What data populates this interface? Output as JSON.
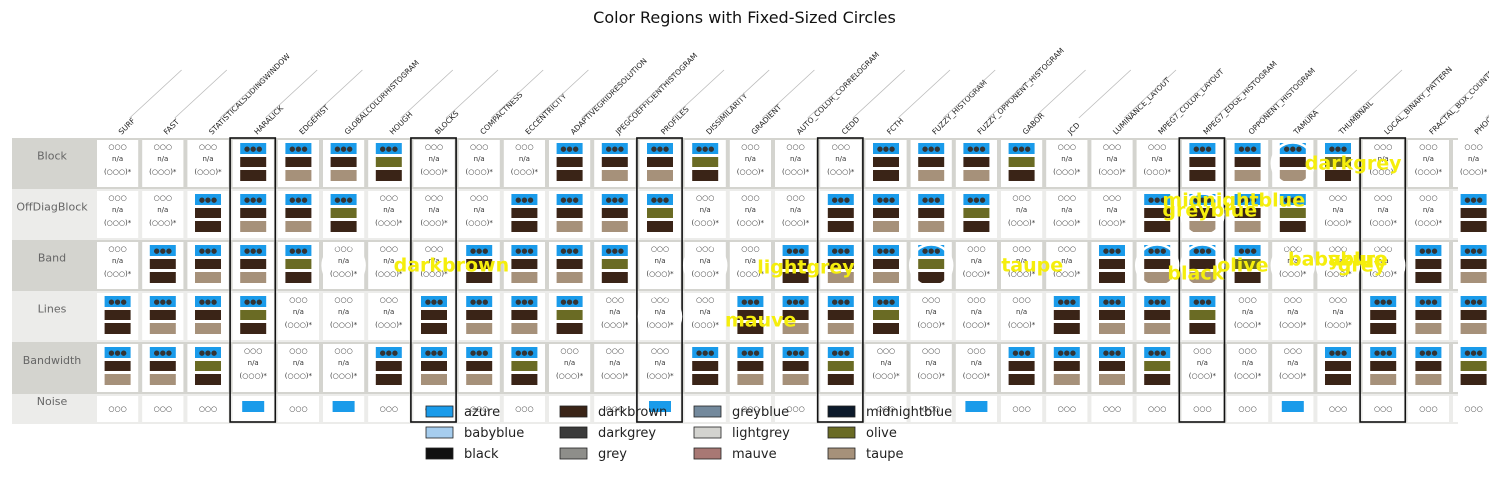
{
  "chart_data": {
    "type": "table",
    "title": "Color Regions with Fixed-Sized Circles",
    "columns": [
      "SURF",
      "FAST",
      "STATISTICALSLIDINGWINDOW",
      "HARALICK",
      "EDGEHIST",
      "GLOBALCOLORHISTOGRAM",
      "HOUGH",
      "BLOCKS",
      "COMPACTNESS",
      "ECCENTRICITY",
      "ADAPTIVEGRIDRESOLUTION",
      "JPEGCOEFFICIENTHISTOGRAM",
      "PROFILES",
      "DISSIMILARITY",
      "GRADIENT",
      "AUTO_COLOR_CORRELOGRAM",
      "CEDD",
      "FCTH",
      "FUZZY_HISTOGRAM",
      "FUZZY_OPPONENT_HISTOGRAM",
      "GABOR",
      "JCD",
      "LUMINANCE_LAYOUT",
      "MPEG7_COLOR_LAYOUT",
      "MPEG7_EDGE_HISTOGRAM",
      "OPPONENT_HISTOGRAM",
      "TAMURA",
      "THUMBNAIL",
      "LOCAL_BINARY_PATTERN",
      "FRACTAL_BOX_COUNTER",
      "PHOG"
    ],
    "rows": [
      "Block",
      "OffDiagBlock",
      "Band",
      "Lines",
      "Bandwidth",
      "Noise"
    ],
    "highlighted_columns": [
      "HARALICK",
      "BLOCKS",
      "PROFILES",
      "CEDD",
      "MPEG7_EDGE_HISTOGRAM",
      "LOCAL_BINARY_PATTERN"
    ],
    "cell_caption": "n/a",
    "legend": [
      "azure",
      "babyblue",
      "black",
      "darkbrown",
      "darkgrey",
      "grey",
      "greyblue",
      "lightgrey",
      "mauve",
      "midnightblue",
      "olive",
      "taupe"
    ],
    "legend_colors": {
      "azure": "#1a9bea",
      "babyblue": "#a6cdee",
      "black": "#111111",
      "darkbrown": "#3a2417",
      "darkgrey": "#3b3b3b",
      "grey": "#8e8e8a",
      "greyblue": "#73899c",
      "lightgrey": "#d3d3cf",
      "mauve": "#a87874",
      "midnightblue": "#0c1a2b",
      "olive": "#6a6b24",
      "taupe": "#a6917a"
    },
    "circle_labels": [
      {
        "label": "darkgrey",
        "column": "TAMURA",
        "row": "Block"
      },
      {
        "label": "midnightblue",
        "column": "MPEG7_EDGE_HISTOGRAM",
        "row": "OffDiagBlock"
      },
      {
        "label": "greyblue",
        "column": "MPEG7_EDGE_HISTOGRAM",
        "row": "OffDiagBlock"
      },
      {
        "label": "black",
        "column": "MPEG7_EDGE_HISTOGRAM",
        "row": "Band"
      },
      {
        "label": "darkbrown",
        "column": "GLOBALCOLORHISTOGRAM",
        "row": "Band"
      },
      {
        "label": "lightgrey",
        "column": "DISSIMILARITY",
        "row": "Band"
      },
      {
        "label": "babyblue",
        "column": "THUMBNAIL",
        "row": "Band"
      },
      {
        "label": "azure",
        "column": "LOCAL_BINARY_PATTERN",
        "row": "Band"
      },
      {
        "label": "taupe",
        "column": "FUZZY_HISTOGRAM",
        "row": "Band"
      },
      {
        "label": "olive",
        "column": "MPEG7_COLOR_LAYOUT",
        "row": "Band"
      },
      {
        "label": "grey",
        "column": "TAMURA",
        "row": "Band"
      },
      {
        "label": "mauve",
        "column": "PROFILES",
        "row": "Lines"
      }
    ]
  }
}
